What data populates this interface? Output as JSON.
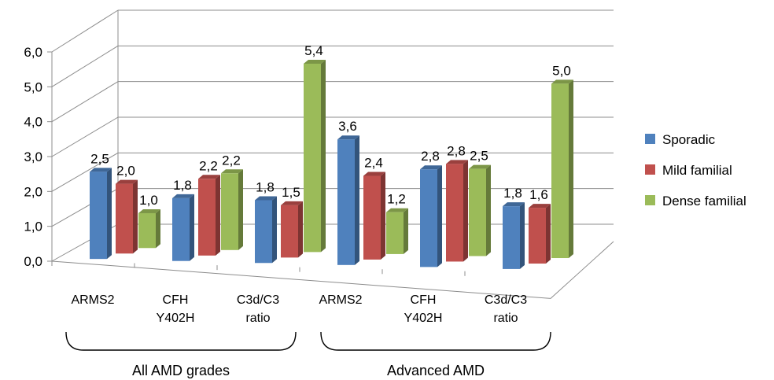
{
  "chart_data": {
    "type": "bar",
    "title": "",
    "xlabel": "",
    "ylabel": "",
    "ylim": [
      0,
      6
    ],
    "y_ticks": [
      "0,0",
      "1,0",
      "2,0",
      "3,0",
      "4,0",
      "5,0",
      "6,0"
    ],
    "grid": true,
    "legend_position": "right",
    "groups": [
      {
        "label": "All AMD grades",
        "categories": [
          0,
          1,
          2
        ]
      },
      {
        "label": "Advanced AMD",
        "categories": [
          3,
          4,
          5
        ]
      }
    ],
    "categories": [
      [
        "ARMS2"
      ],
      [
        "CFH",
        "Y402H"
      ],
      [
        "C3d/C3",
        "ratio"
      ],
      [
        "ARMS2"
      ],
      [
        "CFH",
        "Y402H"
      ],
      [
        "C3d/C3",
        "ratio"
      ]
    ],
    "series": [
      {
        "name": "Sporadic",
        "color": "#4F81BD",
        "values": [
          2.5,
          1.8,
          1.8,
          3.6,
          2.8,
          1.8
        ],
        "labels": [
          "2,5",
          "1,8",
          "1,8",
          "3,6",
          "2,8",
          "1,8"
        ]
      },
      {
        "name": "Mild familial",
        "color": "#C0504D",
        "values": [
          2.0,
          2.2,
          1.5,
          2.4,
          2.8,
          1.6
        ],
        "labels": [
          "2,0",
          "2,2",
          "1,5",
          "2,4",
          "2,8",
          "1,6"
        ]
      },
      {
        "name": "Dense familial",
        "color": "#9BBB59",
        "values": [
          1.0,
          2.2,
          5.4,
          1.2,
          2.5,
          5.0
        ],
        "labels": [
          "1,0",
          "2,2",
          "5,4",
          "1,2",
          "2,5",
          "5,0"
        ]
      }
    ]
  }
}
